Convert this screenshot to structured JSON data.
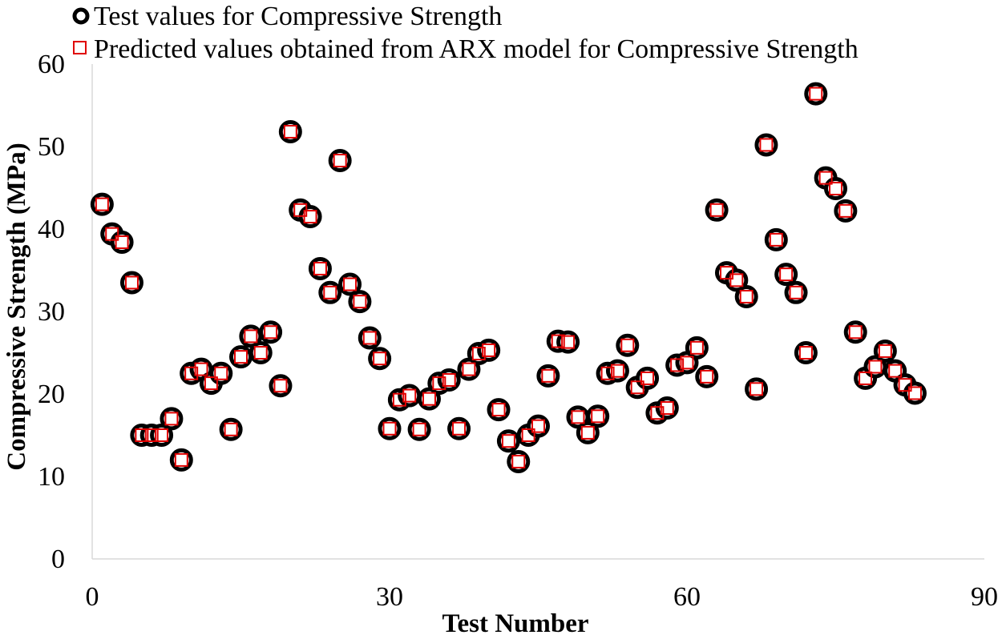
{
  "chart_data": {
    "type": "scatter",
    "xlabel": "Test Number",
    "ylabel": "Compressive Strength (MPa)",
    "xlim": [
      0,
      90
    ],
    "ylim": [
      0,
      60
    ],
    "xticks": [
      "0",
      "30",
      "60",
      "90"
    ],
    "yticks": [
      "0",
      "10",
      "20",
      "30",
      "40",
      "50",
      "60"
    ],
    "grid": false,
    "legend_position": "top-left",
    "series": [
      {
        "name": "Test values for Compressive Strength",
        "marker": "circle",
        "color": "#000000",
        "x": [
          1,
          2,
          3,
          4,
          5,
          6,
          7,
          8,
          9,
          10,
          11,
          12,
          13,
          14,
          15,
          16,
          17,
          18,
          19,
          20,
          21,
          22,
          23,
          24,
          25,
          26,
          27,
          28,
          29,
          30,
          31,
          32,
          33,
          34,
          35,
          36,
          37,
          38,
          39,
          40,
          41,
          42,
          43,
          44,
          45,
          46,
          47,
          48,
          49,
          50,
          51,
          52,
          53,
          54,
          55,
          56,
          57,
          58,
          59,
          60,
          61,
          62,
          63,
          64,
          65,
          66,
          67,
          68,
          69,
          70,
          71,
          72,
          73,
          74,
          75,
          76,
          77,
          78,
          79,
          80,
          81,
          82,
          83
        ],
        "y": [
          43.0,
          39.4,
          38.4,
          33.5,
          15.0,
          15.0,
          15.0,
          17.0,
          12.0,
          22.5,
          23.0,
          21.3,
          22.5,
          15.7,
          24.5,
          27.0,
          25.0,
          27.5,
          21.0,
          51.8,
          42.3,
          41.5,
          35.2,
          32.3,
          48.3,
          33.3,
          31.2,
          26.8,
          24.3,
          15.8,
          19.3,
          19.8,
          15.7,
          19.4,
          21.3,
          21.7,
          15.8,
          23.0,
          24.9,
          25.3,
          18.1,
          14.3,
          11.8,
          15.0,
          16.1,
          22.2,
          26.4,
          26.3,
          17.2,
          15.3,
          17.3,
          22.5,
          22.8,
          25.9,
          20.8,
          21.9,
          17.7,
          18.3,
          23.5,
          23.8,
          25.6,
          22.1,
          42.3,
          34.7,
          33.8,
          31.8,
          20.6,
          50.2,
          38.7,
          34.5,
          32.3,
          25.0,
          56.4,
          46.2,
          44.9,
          42.2,
          27.5,
          21.9,
          23.3,
          25.2,
          22.8,
          21.1,
          20.1
        ]
      },
      {
        "name": "Predicted values obtained from ARX model for Compressive Strength",
        "marker": "square",
        "color": "#e00000",
        "x": [
          1,
          2,
          3,
          4,
          5,
          6,
          7,
          8,
          9,
          10,
          11,
          12,
          13,
          14,
          15,
          16,
          17,
          18,
          19,
          20,
          21,
          22,
          23,
          24,
          25,
          26,
          27,
          28,
          29,
          30,
          31,
          32,
          33,
          34,
          35,
          36,
          37,
          38,
          39,
          40,
          41,
          42,
          43,
          44,
          45,
          46,
          47,
          48,
          49,
          50,
          51,
          52,
          53,
          54,
          55,
          56,
          57,
          58,
          59,
          60,
          61,
          62,
          63,
          64,
          65,
          66,
          67,
          68,
          69,
          70,
          71,
          72,
          73,
          74,
          75,
          76,
          77,
          78,
          79,
          80,
          81,
          82,
          83
        ],
        "y": [
          43.0,
          39.4,
          38.4,
          33.5,
          15.0,
          15.0,
          15.0,
          17.0,
          12.0,
          22.5,
          23.0,
          21.3,
          22.5,
          15.7,
          24.5,
          27.0,
          25.0,
          27.5,
          21.0,
          51.8,
          42.3,
          41.5,
          35.2,
          32.3,
          48.3,
          33.3,
          31.2,
          26.8,
          24.3,
          15.8,
          19.3,
          19.8,
          15.7,
          19.4,
          21.3,
          21.7,
          15.8,
          23.0,
          24.9,
          25.3,
          18.1,
          14.3,
          11.8,
          15.0,
          16.1,
          22.2,
          26.4,
          26.3,
          17.2,
          15.3,
          17.3,
          22.5,
          22.8,
          25.9,
          20.8,
          21.9,
          17.7,
          18.3,
          23.5,
          23.8,
          25.6,
          22.1,
          42.3,
          34.7,
          33.8,
          31.8,
          20.6,
          50.2,
          38.7,
          34.5,
          32.3,
          25.0,
          56.4,
          46.2,
          44.9,
          42.2,
          27.5,
          21.9,
          23.3,
          25.2,
          22.8,
          21.1,
          20.1
        ]
      }
    ]
  }
}
